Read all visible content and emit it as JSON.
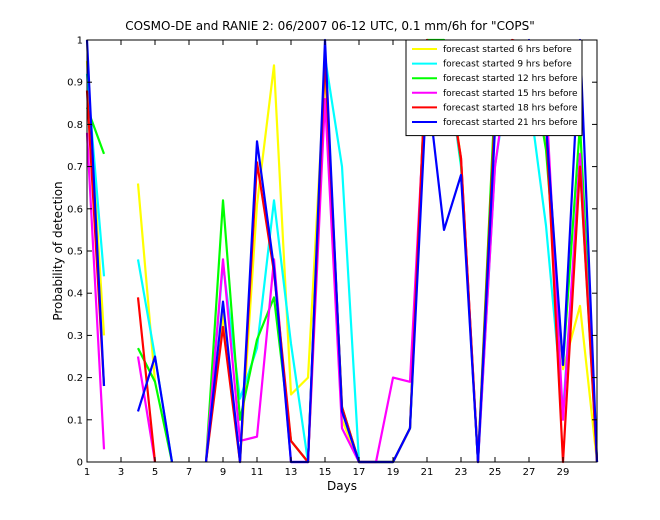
{
  "chart_data": {
    "type": "line",
    "title": "COSMO-DE and RANIE 2: 06/2007 06-12 UTC, 0.1 mm/6h for \"COPS\"",
    "xlabel": "Days",
    "ylabel": "Probability of detection",
    "xlim": [
      1,
      31
    ],
    "ylim": [
      0,
      1
    ],
    "xticks": [
      "1",
      "3",
      "5",
      "7",
      "9",
      "11",
      "13",
      "15",
      "17",
      "19",
      "21",
      "23",
      "25",
      "27",
      "29"
    ],
    "yticks": [
      "0",
      "0.1",
      "0.2",
      "0.3",
      "0.4",
      "0.5",
      "0.6",
      "0.7",
      "0.8",
      "0.9",
      "1"
    ],
    "legend_position": "top-right",
    "series": [
      {
        "name": "forecast started 6 hrs before",
        "color": "#ffff00",
        "values": [
          0.95,
          0.3,
          null,
          0.66,
          0.19,
          null,
          null,
          0.0,
          0.35,
          0.0,
          0.61,
          0.94,
          0.16,
          0.2,
          0.93,
          0.1,
          0.0,
          0.0,
          0.0,
          0.08,
          0.95,
          1.0,
          0.72,
          0.0,
          0.86,
          0.97,
          0.95,
          0.8,
          0.22,
          0.37,
          0.0
        ]
      },
      {
        "name": "forecast started 9 hrs before",
        "color": "#00ffff",
        "values": [
          0.92,
          0.44,
          null,
          0.48,
          0.25,
          0.0,
          null,
          0.0,
          0.47,
          0.15,
          0.27,
          0.62,
          0.28,
          0.0,
          0.96,
          0.7,
          0.0,
          0.0,
          0.0,
          0.08,
          0.95,
          1.0,
          0.7,
          0.0,
          0.7,
          0.97,
          0.87,
          0.56,
          0.12,
          0.7,
          0.0
        ]
      },
      {
        "name": "forecast started 12 hrs before",
        "color": "#00ff00",
        "values": [
          0.84,
          0.73,
          null,
          0.27,
          0.19,
          0.0,
          null,
          0.0,
          0.62,
          0.1,
          0.29,
          0.39,
          0.05,
          0.0,
          0.97,
          0.13,
          0.0,
          0.0,
          0.0,
          0.08,
          1.0,
          1.0,
          0.71,
          0.0,
          0.87,
          0.98,
          0.98,
          0.74,
          0.23,
          0.8,
          0.0
        ]
      },
      {
        "name": "forecast started 15 hrs before",
        "color": "#ff00ff",
        "values": [
          0.78,
          0.03,
          null,
          0.25,
          0.0,
          null,
          null,
          0.0,
          0.48,
          0.05,
          0.06,
          0.48,
          0.0,
          0.0,
          0.86,
          0.08,
          0.0,
          0.0,
          0.2,
          0.19,
          0.95,
          0.97,
          0.72,
          0.0,
          0.7,
          0.99,
          0.99,
          0.87,
          0.1,
          0.73,
          0.0
        ]
      },
      {
        "name": "forecast started 18 hrs before",
        "color": "#ff0000",
        "values": [
          0.88,
          0.18,
          null,
          0.39,
          0.0,
          null,
          null,
          0.0,
          0.32,
          0.0,
          0.71,
          0.45,
          0.05,
          0.0,
          0.96,
          0.13,
          0.0,
          0.0,
          0.0,
          0.08,
          1.0,
          0.98,
          0.72,
          0.0,
          0.83,
          1.0,
          0.99,
          0.8,
          0.0,
          0.7,
          0.0
        ]
      },
      {
        "name": "forecast started 21 hrs before",
        "color": "#0000ff",
        "values": [
          1.0,
          0.18,
          null,
          0.12,
          0.25,
          0.0,
          null,
          0.0,
          0.38,
          0.0,
          0.76,
          0.46,
          0.0,
          0.0,
          1.0,
          0.12,
          0.0,
          0.0,
          0.0,
          0.08,
          0.9,
          0.55,
          0.68,
          0.0,
          0.79,
          0.97,
          1.0,
          0.8,
          0.23,
          1.0,
          0.0
        ]
      }
    ]
  }
}
